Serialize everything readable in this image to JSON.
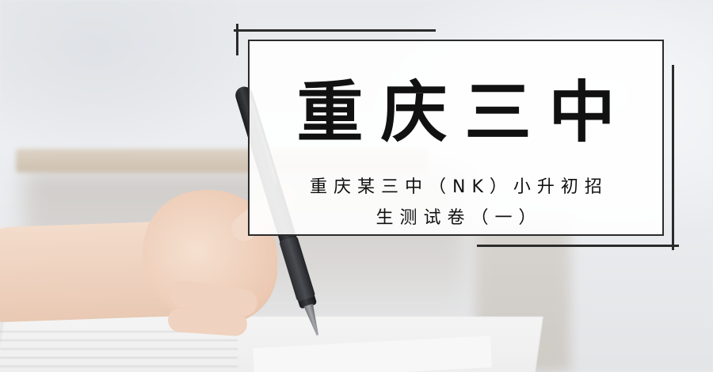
{
  "card": {
    "title": "重庆三中",
    "subtitle_line1": "重庆某三中（NK）小升初招",
    "subtitle_line2": "生测试卷（一）"
  },
  "colors": {
    "frame": "#2b2b2b",
    "card_background": "#ffffff",
    "text": "#111111"
  }
}
